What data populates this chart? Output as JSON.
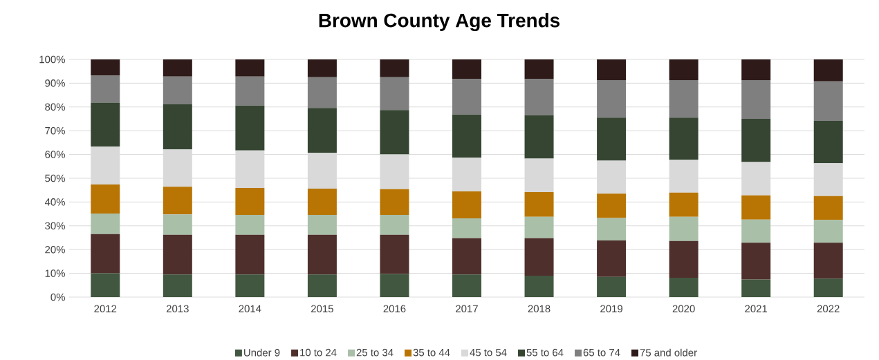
{
  "chart_data": {
    "type": "bar",
    "title": "Brown County Age Trends",
    "stacked": true,
    "grid": "y",
    "legend": "bottom",
    "categories": [
      "2012",
      "2013",
      "2014",
      "2015",
      "2016",
      "2017",
      "2018",
      "2019",
      "2020",
      "2021",
      "2022"
    ],
    "ylim": [
      0,
      100
    ],
    "yticks": [
      {
        "value": 0,
        "label": "0%"
      },
      {
        "value": 10,
        "label": "10%"
      },
      {
        "value": 20,
        "label": "20%"
      },
      {
        "value": 30,
        "label": "30%"
      },
      {
        "value": 40,
        "label": "40%"
      },
      {
        "value": 50,
        "label": "50%"
      },
      {
        "value": 60,
        "label": "60%"
      },
      {
        "value": 70,
        "label": "70%"
      },
      {
        "value": 80,
        "label": "80%"
      },
      {
        "value": 90,
        "label": "90%"
      },
      {
        "value": 100,
        "label": "100%"
      }
    ],
    "series": [
      {
        "name": "Under 9",
        "color": "#41573f",
        "values": [
          10.0,
          9.5,
          9.5,
          9.5,
          9.7,
          9.5,
          9.0,
          8.5,
          8.1,
          7.4,
          7.8
        ]
      },
      {
        "name": "10 to 24",
        "color": "#4e2f2c",
        "values": [
          16.5,
          16.7,
          16.7,
          16.7,
          16.5,
          15.3,
          15.8,
          15.3,
          15.5,
          15.5,
          15.1
        ]
      },
      {
        "name": "25 to 34",
        "color": "#a9bfa8",
        "values": [
          8.7,
          8.6,
          8.4,
          8.4,
          8.4,
          8.3,
          9.0,
          9.5,
          10.2,
          9.7,
          9.6
        ]
      },
      {
        "name": "35 to 44",
        "color": "#b87503",
        "values": [
          12.2,
          11.6,
          11.3,
          11.0,
          10.8,
          11.4,
          10.4,
          10.2,
          10.2,
          10.2,
          10.0
        ]
      },
      {
        "name": "45 to 54",
        "color": "#d9d9d9",
        "values": [
          16.0,
          15.7,
          15.8,
          15.1,
          14.6,
          14.2,
          14.1,
          13.9,
          13.8,
          14.0,
          13.8
        ]
      },
      {
        "name": "55 to 64",
        "color": "#354532",
        "values": [
          18.4,
          19.0,
          18.9,
          18.9,
          18.7,
          18.1,
          18.2,
          18.1,
          17.7,
          18.2,
          17.8
        ]
      },
      {
        "name": "65 to 74",
        "color": "#7f7f7f",
        "values": [
          11.4,
          11.7,
          12.2,
          12.9,
          13.8,
          14.9,
          15.2,
          15.8,
          15.8,
          16.3,
          16.7
        ]
      },
      {
        "name": "75 and older",
        "color": "#2d1a19",
        "values": [
          6.8,
          7.2,
          7.2,
          7.5,
          7.5,
          8.3,
          8.3,
          8.7,
          8.7,
          8.7,
          9.2
        ]
      }
    ]
  }
}
